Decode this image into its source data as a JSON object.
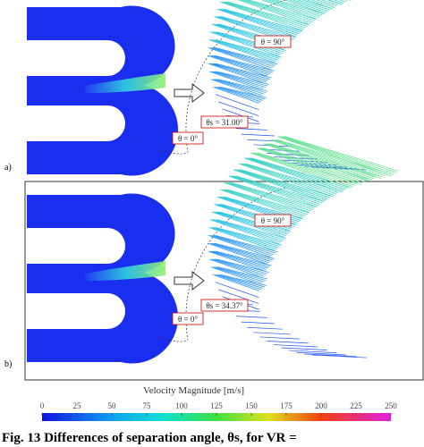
{
  "panels": [
    {
      "label": "a)",
      "theta_90": "θ = 90°",
      "theta_s": "θs = 31.00°",
      "theta_0": "θ = 0°"
    },
    {
      "label": "b)",
      "theta_90": "θ = 90°",
      "theta_s": "θs = 34.37°",
      "theta_0": "θ = 0°"
    }
  ],
  "colorbar": {
    "title": "Velocity Magnitude [m/s]",
    "range": [
      0,
      250
    ],
    "ticks": [
      0,
      25,
      50,
      75,
      100,
      125,
      150,
      175,
      200,
      225,
      250
    ]
  },
  "caption": "Fig. 13 Differences of separation angle, θs, for VR ="
}
